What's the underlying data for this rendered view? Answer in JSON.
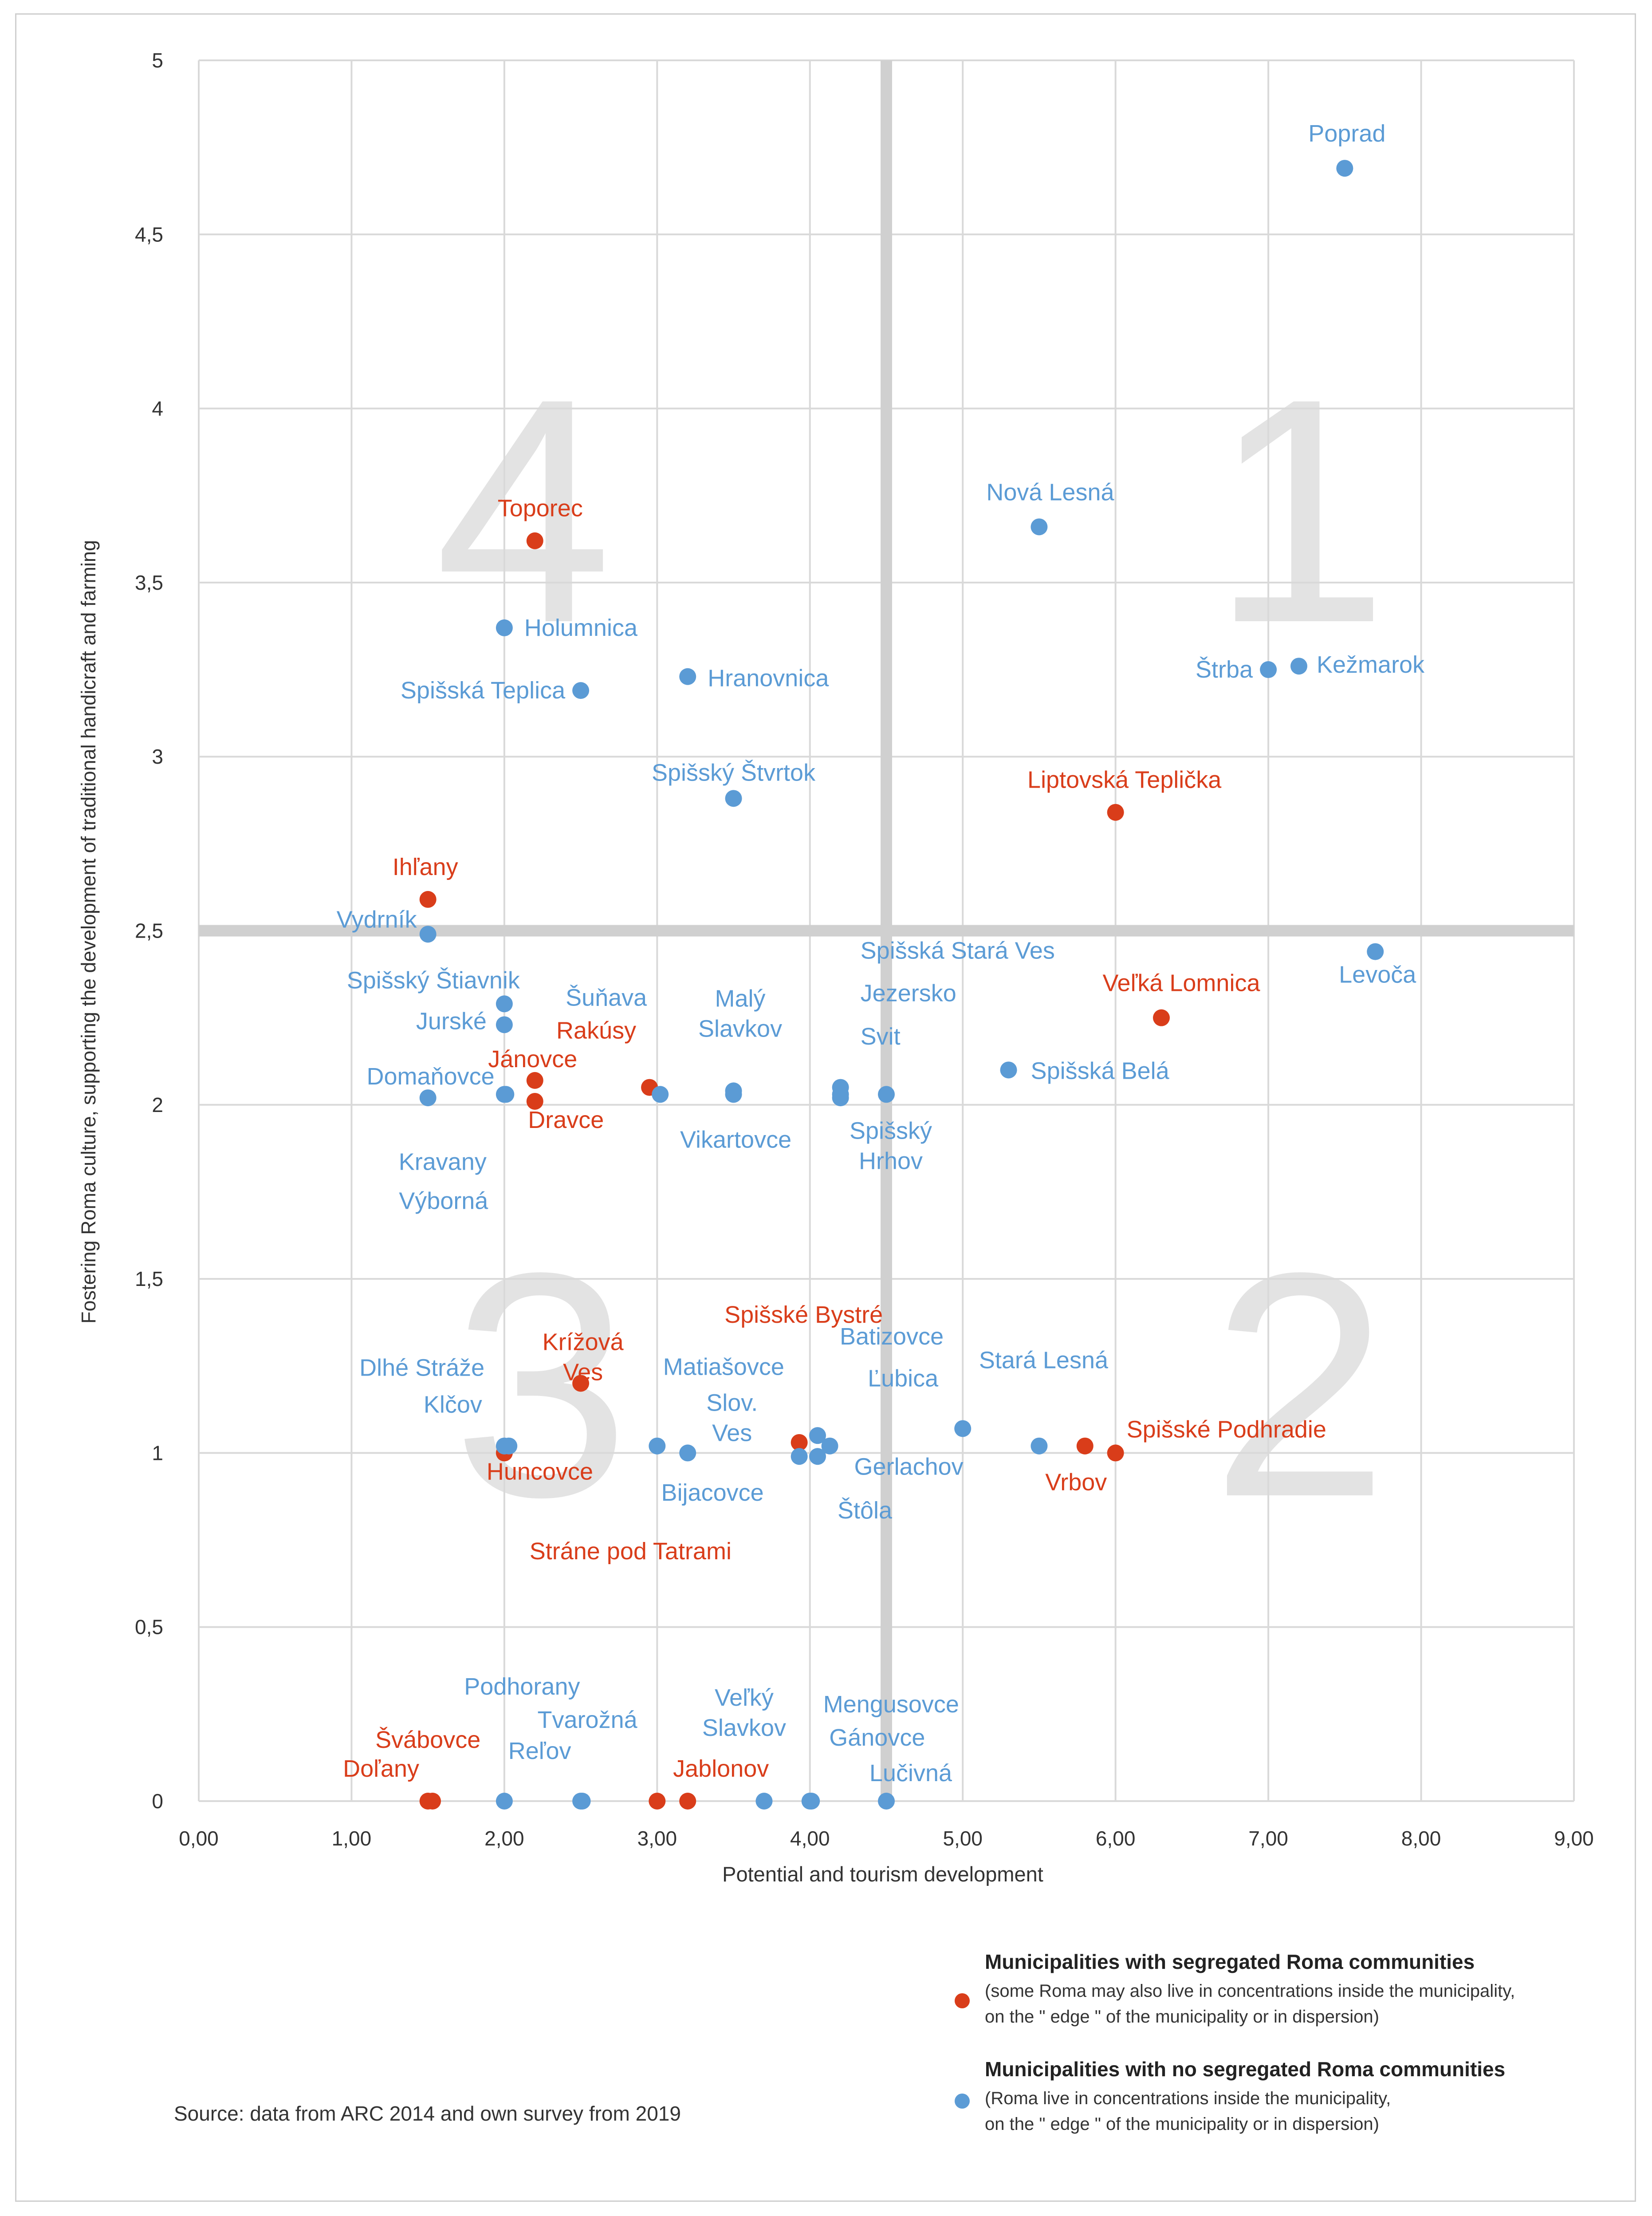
{
  "chart_data": {
    "type": "scatter",
    "title": "",
    "xlabel": "Potential and tourism development",
    "ylabel": "Fostering Roma culture, supporting the development of traditional handicraft and farming",
    "xlim": [
      0,
      9
    ],
    "ylim": [
      0,
      5
    ],
    "x_ticks": [
      "0,00",
      "1,00",
      "2,00",
      "3,00",
      "4,00",
      "5,00",
      "6,00",
      "7,00",
      "8,00",
      "9,00"
    ],
    "y_ticks": [
      "0",
      "0,5",
      "1",
      "1,5",
      "2",
      "2,5",
      "3",
      "3,5",
      "4",
      "4,5",
      "5"
    ],
    "divider_x": 4.5,
    "divider_y": 2.5,
    "quadrant_labels": [
      "1",
      "2",
      "3",
      "4"
    ],
    "series": [
      {
        "name": "Municipalities with segregated Roma communities",
        "color": "#d93d1a",
        "points": [
          {
            "label": "Toporec",
            "x": 2.2,
            "y": 3.62
          },
          {
            "label": "Liptovská Teplička",
            "x": 6.0,
            "y": 2.84
          },
          {
            "label": "Ihľany",
            "x": 1.5,
            "y": 2.59
          },
          {
            "label": "Veľká Lomnica",
            "x": 6.3,
            "y": 2.25
          },
          {
            "label": "Rakúsy",
            "x": 2.95,
            "y": 2.05
          },
          {
            "label": "Jánovce",
            "x": 2.2,
            "y": 2.07
          },
          {
            "label": "Dravce",
            "x": 2.2,
            "y": 2.01
          },
          {
            "label": "Krížová Ves",
            "x": 2.5,
            "y": 1.2
          },
          {
            "label": "Spišské Bystré",
            "x": 3.93,
            "y": 1.03
          },
          {
            "label": "Vrbov",
            "x": 5.8,
            "y": 1.02
          },
          {
            "label": "Spišské Podhradie",
            "x": 6.0,
            "y": 1.0
          },
          {
            "label": "Huncovce",
            "x": 2.0,
            "y": 1.0
          },
          {
            "label": "Švábovce",
            "x": 1.5,
            "y": 0.0
          },
          {
            "label": "Doľany",
            "x": 1.53,
            "y": 0.0
          },
          {
            "label": "Stráne pod Tatrami",
            "x": 3.0,
            "y": 0.0
          },
          {
            "label": "Jablonov",
            "x": 3.2,
            "y": 0.0
          }
        ]
      },
      {
        "name": "Municipalities with no segregated Roma communities",
        "color": "#5b9bd5",
        "points": [
          {
            "label": "Poprad",
            "x": 7.5,
            "y": 4.69
          },
          {
            "label": "Nová Lesná",
            "x": 5.5,
            "y": 3.66
          },
          {
            "label": "Holumnica",
            "x": 2.0,
            "y": 3.37
          },
          {
            "label": "Hranovnica",
            "x": 3.2,
            "y": 3.23
          },
          {
            "label": "Spišská Teplica",
            "x": 2.5,
            "y": 3.19
          },
          {
            "label": "Štrba",
            "x": 7.0,
            "y": 3.25
          },
          {
            "label": "Kežmarok",
            "x": 7.2,
            "y": 3.26
          },
          {
            "label": "Spišský Štvrtok",
            "x": 3.5,
            "y": 2.88
          },
          {
            "label": "Vydrník",
            "x": 1.5,
            "y": 2.49
          },
          {
            "label": "Levoča",
            "x": 7.7,
            "y": 2.44
          },
          {
            "label": "Spišský Štiavnik",
            "x": 2.0,
            "y": 2.29
          },
          {
            "label": "Jurské",
            "x": 2.0,
            "y": 2.23
          },
          {
            "label": "Domaňovce",
            "x": 1.5,
            "y": 2.02
          },
          {
            "label": "Kravany",
            "x": 2.0,
            "y": 2.03
          },
          {
            "label": "Výborná",
            "x": 2.01,
            "y": 2.03
          },
          {
            "label": "Šuňava",
            "x": 3.02,
            "y": 2.03
          },
          {
            "label": "Malý Slavkov",
            "x": 3.5,
            "y": 2.04
          },
          {
            "label": "Vikartovce",
            "x": 3.5,
            "y": 2.03
          },
          {
            "label": "Spišská Stará Ves",
            "x": 4.2,
            "y": 2.05
          },
          {
            "label": "Jezersko",
            "x": 4.2,
            "y": 2.03
          },
          {
            "label": "Svit",
            "x": 4.2,
            "y": 2.02
          },
          {
            "label": "Spišský Hrhov",
            "x": 4.5,
            "y": 2.03
          },
          {
            "label": "Spišská Belá",
            "x": 5.3,
            "y": 2.1
          },
          {
            "label": "Dlhé Stráže",
            "x": 2.03,
            "y": 1.02
          },
          {
            "label": "Klčov",
            "x": 2.0,
            "y": 1.02
          },
          {
            "label": "Matiašovce",
            "x": 3.0,
            "y": 1.02
          },
          {
            "label": "Slov. Ves",
            "x": 3.2,
            "y": 1.0
          },
          {
            "label": "Batizovce",
            "x": 4.05,
            "y": 1.05
          },
          {
            "label": "Bijacovce",
            "x": 3.93,
            "y": 0.99
          },
          {
            "label": "Štôla",
            "x": 4.05,
            "y": 0.99
          },
          {
            "label": "Gerlachov",
            "x": 4.13,
            "y": 1.02
          },
          {
            "label": "Ľubica",
            "x": 5.0,
            "y": 1.07
          },
          {
            "label": "Stará Lesná",
            "x": 5.5,
            "y": 1.02
          },
          {
            "label": "Podhorany",
            "x": 2.0,
            "y": 0.0
          },
          {
            "label": "Tvarožná",
            "x": 2.5,
            "y": 0.0
          },
          {
            "label": "Reľov",
            "x": 2.51,
            "y": 0.0
          },
          {
            "label": "Veľký Slavkov",
            "x": 3.7,
            "y": 0.0
          },
          {
            "label": "Mengusovce",
            "x": 4.0,
            "y": 0.0
          },
          {
            "label": "Gánovce",
            "x": 4.01,
            "y": 0.0
          },
          {
            "label": "Lučivná",
            "x": 4.5,
            "y": 0.0
          }
        ]
      }
    ],
    "legend": {
      "position": "bottom-right",
      "items": [
        {
          "title": "Municipalities with segregated Roma communities",
          "note": "(some Roma may also live in concentrations inside the municipality,\n on the \" edge \" of the municipality or in dispersion)",
          "color": "#d93d1a"
        },
        {
          "title": "Municipalities with no segregated Roma communities",
          "note": "(Roma live in concentrations inside the municipality,\n on the \" edge \" of the municipality or in dispersion)",
          "color": "#5b9bd5"
        }
      ]
    },
    "source": "Source: data from ARC 2014 and own survey from 2019"
  }
}
